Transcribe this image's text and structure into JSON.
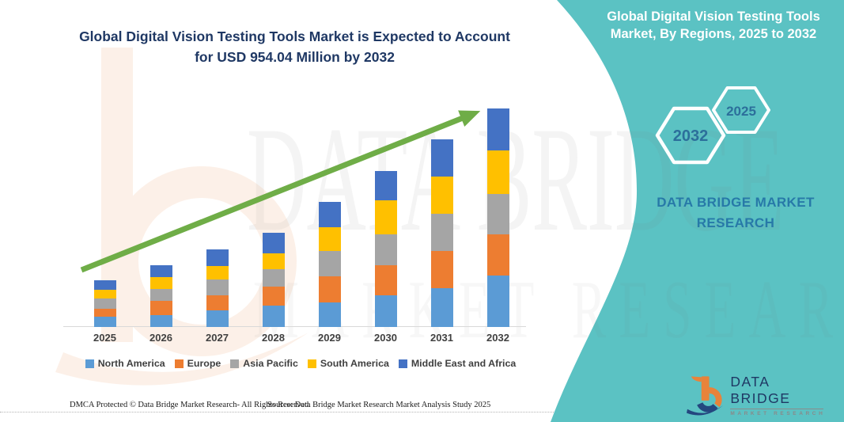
{
  "colors": {
    "teal_panel": "#5BC2C3",
    "title_navy": "#1F3864",
    "brand_blue": "#2779A8",
    "hexagon_label": "#2C6F9B",
    "arrow_green": "#6FAD47",
    "axis_gray": "#D9D9D9",
    "legend_text": "#3F3F3F",
    "logo_orange": "#E8833A",
    "logo_navy": "#24477F",
    "watermark_peach": "#F4B183"
  },
  "title": {
    "line1": "Global Digital Vision Testing Tools Market is Expected to Account",
    "line2": "for USD 954.04 Million by 2032"
  },
  "side_panel": {
    "heading_line1": "Global Digital Vision Testing Tools",
    "heading_line2": "Market, By Regions, 2025 to 2032",
    "hexagon_large": "2032",
    "hexagon_small": "2025",
    "brand_line1": "DATA BRIDGE MARKET",
    "brand_line2": "RESEARCH"
  },
  "watermark": {
    "text_primary": "DATA BRIDGE",
    "text_secondary": "MARKET RESEARCH"
  },
  "chart_data": {
    "type": "bar",
    "stacked": true,
    "title": "Global Digital Vision Testing Tools Market is Expected to Account for USD 954.04 Million by 2032",
    "categories": [
      "2025",
      "2026",
      "2027",
      "2028",
      "2029",
      "2030",
      "2031",
      "2032"
    ],
    "series": [
      {
        "name": "North America",
        "color": "#5B9BD5",
        "values": [
          44,
          52,
          72,
          92,
          107,
          138,
          170,
          225
        ]
      },
      {
        "name": "Europe",
        "color": "#ED7D31",
        "values": [
          37,
          61,
          65,
          86,
          114,
          132,
          162,
          180
        ]
      },
      {
        "name": "Asia Pacific",
        "color": "#A5A5A5",
        "values": [
          45,
          52,
          71,
          75,
          110,
          135,
          163,
          177
        ]
      },
      {
        "name": "South America",
        "color": "#FFC000",
        "values": [
          37,
          52,
          60,
          69,
          103,
          147,
          160,
          188
        ]
      },
      {
        "name": "Middle East and Africa",
        "color": "#4472C4",
        "values": [
          41,
          54.3,
          70.8,
          89.3,
          112.1,
          128.9,
          164.2,
          184.04
        ]
      }
    ],
    "totals": [
      204,
      271.3,
      338.8,
      411.3,
      546.1,
      680.9,
      819.2,
      954.04
    ],
    "unit": "USD Million (estimated from bar heights; image states 2032 total = USD 954.04 Million)",
    "xlabel": "",
    "ylabel": "",
    "y_axis_visible": false,
    "grid": false,
    "legend_position": "bottom",
    "annotations": [
      "green upward trend arrow across bars"
    ]
  },
  "footer": {
    "left": "DMCA Protected © Data Bridge Market Research- All Rights Reserved.",
    "source": "Source: Data Bridge Market Research Market Analysis Study 2025"
  },
  "logo": {
    "name": "DATA BRIDGE",
    "tagline": "MARKET RESEARCH"
  }
}
